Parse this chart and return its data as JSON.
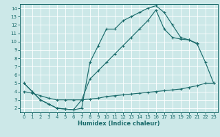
{
  "xlabel": "Humidex (Indice chaleur)",
  "ylabel": "",
  "bg_color": "#cce8e8",
  "grid_color": "#b8d8d8",
  "line_color": "#1a6b6b",
  "xlim": [
    -0.5,
    23.5
  ],
  "ylim": [
    1.5,
    14.5
  ],
  "x_ticks": [
    0,
    1,
    2,
    3,
    4,
    5,
    6,
    7,
    8,
    9,
    10,
    11,
    12,
    13,
    14,
    15,
    16,
    17,
    18,
    19,
    20,
    21,
    22,
    23
  ],
  "y_ticks": [
    2,
    3,
    4,
    5,
    6,
    7,
    8,
    9,
    10,
    11,
    12,
    13,
    14
  ],
  "line1_x": [
    0,
    1,
    2,
    3,
    4,
    5,
    6,
    7,
    8,
    9,
    10,
    11,
    12,
    13,
    14,
    15,
    16,
    17,
    18,
    19,
    20,
    21
  ],
  "line1_y": [
    5.0,
    4.0,
    3.0,
    2.5,
    2.0,
    1.9,
    1.8,
    2.0,
    7.5,
    9.5,
    11.5,
    11.5,
    12.5,
    13.0,
    13.5,
    14.0,
    14.3,
    13.5,
    12.0,
    10.5,
    10.2,
    9.8
  ],
  "line2_x": [
    0,
    1,
    2,
    3,
    4,
    5,
    6,
    7,
    8,
    9,
    10,
    11,
    12,
    13,
    14,
    15,
    16,
    17,
    18,
    19,
    20,
    21,
    22,
    23
  ],
  "line2_y": [
    5.0,
    4.0,
    3.0,
    2.5,
    2.0,
    1.9,
    1.8,
    3.0,
    5.5,
    6.5,
    7.5,
    8.5,
    9.5,
    10.5,
    11.5,
    12.5,
    13.8,
    11.5,
    10.5,
    10.3,
    10.2,
    9.7,
    7.5,
    5.0
  ],
  "line3_x": [
    0,
    1,
    2,
    3,
    4,
    5,
    6,
    7,
    8,
    9,
    10,
    11,
    12,
    13,
    14,
    15,
    16,
    17,
    18,
    19,
    20,
    21,
    22,
    23
  ],
  "line3_y": [
    4.0,
    3.8,
    3.5,
    3.2,
    3.0,
    3.0,
    3.0,
    3.0,
    3.1,
    3.2,
    3.4,
    3.5,
    3.6,
    3.7,
    3.8,
    3.9,
    4.0,
    4.1,
    4.2,
    4.3,
    4.5,
    4.7,
    5.0,
    5.0
  ]
}
